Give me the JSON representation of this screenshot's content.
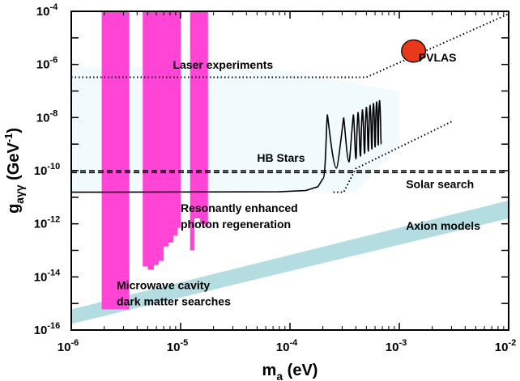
{
  "chart_data": {
    "type": "area",
    "x_scale": "log",
    "y_scale": "log",
    "xlim": [
      1e-06,
      0.01
    ],
    "ylim": [
      1e-16,
      0.0001
    ],
    "xlabel": {
      "base": "m",
      "sub": "a",
      "rest": " (eV)"
    },
    "ylabel": {
      "base": "g",
      "sub": "aγγ",
      "rest": " (GeV",
      "sup": "-1",
      "end": ")"
    },
    "x_ticks": [
      {
        "value": 1e-06,
        "base": "10",
        "exp": "-6"
      },
      {
        "value": 1e-05,
        "base": "10",
        "exp": "-5"
      },
      {
        "value": 0.0001,
        "base": "10",
        "exp": "-4"
      },
      {
        "value": 0.001,
        "base": "10",
        "exp": "-3"
      },
      {
        "value": 0.01,
        "base": "10",
        "exp": "-2"
      }
    ],
    "y_ticks": [
      {
        "value": 1e-16,
        "base": "10",
        "exp": "-16"
      },
      {
        "value": 1e-14,
        "base": "10",
        "exp": "-14"
      },
      {
        "value": 1e-12,
        "base": "10",
        "exp": "-12"
      },
      {
        "value": 1e-10,
        "base": "10",
        "exp": "-10"
      },
      {
        "value": 1e-08,
        "base": "10",
        "exp": "-8"
      },
      {
        "value": 1e-06,
        "base": "10",
        "exp": "-6"
      },
      {
        "value": 0.0001,
        "base": "10",
        "exp": "-4"
      }
    ],
    "colors": {
      "microwave": "#ff44d6",
      "axion_band": "#b4dde2",
      "solar_region": "#f1fafd",
      "pvlas_fill": "#e8391c",
      "line": "#000000"
    },
    "regions": {
      "axion_models_band": {
        "lower": [
          [
            1e-06,
            1.7e-16
          ],
          [
            0.01,
            1.6e-12
          ]
        ],
        "upper": [
          [
            1e-06,
            6e-16
          ],
          [
            0.01,
            7.5e-12
          ]
        ]
      },
      "solar_search": [
        [
          1e-06,
          1.5e-11
        ],
        [
          1e-06,
          8e-07
        ],
        [
          5.5e-05,
          8e-07
        ],
        [
          0.001,
          1e-07
        ],
        [
          0.001,
          1e-09
        ],
        [
          0.0004,
          1.5e-11
        ]
      ],
      "microwave_cavity": [
        {
          "x": [
            1.9e-06,
            3.4e-06
          ],
          "steps": [
            [
              1.9e-06,
              6e-16
            ],
            [
              3.4e-06,
              6e-16
            ]
          ]
        },
        {
          "x": [
            4.5e-06,
            1e-05
          ],
          "steps": [
            [
              4.5e-06,
              2.5e-14
            ],
            [
              5e-06,
              1.9e-14
            ],
            [
              5.7e-06,
              2.8e-14
            ],
            [
              6.3e-06,
              4e-14
            ],
            [
              7e-06,
              1.4e-13
            ],
            [
              7.8e-06,
              2e-13
            ],
            [
              8.6e-06,
              3.6e-13
            ],
            [
              9.4e-06,
              7e-13
            ],
            [
              1e-05,
              7e-13
            ]
          ]
        },
        {
          "x": [
            1.22e-05,
            1.78e-05
          ],
          "steps": [
            [
              1.22e-05,
              1e-13
            ],
            [
              1.34e-05,
              1.6e-12
            ],
            [
              1.5e-05,
              1e-12
            ],
            [
              1.65e-05,
              8e-13
            ],
            [
              1.78e-05,
              8e-13
            ]
          ]
        }
      ],
      "microwave_top": 0.0001
    },
    "lines": {
      "laser_experiments": {
        "style": "dotted",
        "points": [
          [
            1e-06,
            3.3e-07
          ],
          [
            0.0005,
            3.3e-07
          ],
          [
            0.01,
            8e-05
          ]
        ]
      },
      "hb_stars": {
        "style": "dashed",
        "y": 1e-10
      },
      "hb_stars_second": {
        "style": "dashed",
        "y": 8.5e-11
      },
      "resonant_extension": {
        "style": "dotted",
        "points": [
          [
            0.00025,
            1.55e-11
          ],
          [
            0.00031,
            1.55e-11
          ],
          [
            0.0004,
            1.2e-10
          ],
          [
            0.003,
            7e-09
          ]
        ]
      },
      "resonant_baseline": {
        "style": "solid",
        "points": [
          [
            1e-06,
            1.55e-11
          ],
          [
            8e-05,
            1.6e-11
          ],
          [
            0.00014,
            1.8e-11
          ],
          [
            0.00018,
            2.5e-11
          ],
          [
            0.0002,
            5e-11
          ]
        ]
      },
      "resonant_peaks": [
        {
          "x": 0.00022,
          "peak": 1.3e-08
        },
        {
          "x": 0.00031,
          "peak": 1e-08
        },
        {
          "x": 0.00038,
          "peak": 1.3e-08
        },
        {
          "x": 0.00042,
          "peak": 1.6e-08
        },
        {
          "x": 0.00046,
          "peak": 2e-08
        },
        {
          "x": 0.0005,
          "peak": 2.5e-08
        },
        {
          "x": 0.00054,
          "peak": 3e-08
        },
        {
          "x": 0.00058,
          "peak": 3.5e-08
        },
        {
          "x": 0.00062,
          "peak": 4e-08
        },
        {
          "x": 0.00066,
          "peak": 4.5e-08
        }
      ],
      "resonant_floor_end": {
        "x": 0.00068,
        "y": 1e-09
      }
    },
    "pvlas": {
      "x": 0.00135,
      "y": 3.2e-06,
      "rx_decades": 0.11,
      "ry_decades": 0.42
    },
    "annotations": [
      {
        "text": "Laser experiments",
        "x": 8.5e-06,
        "y": 7e-07
      },
      {
        "text": "PVLAS",
        "x": 0.0015,
        "y": 1.3e-06
      },
      {
        "text": "HB Stars",
        "x": 5e-05,
        "y": 2.2e-10
      },
      {
        "text": "Solar search",
        "x": 0.00115,
        "y": 2.2e-11
      },
      {
        "text": "Resonantly enhanced",
        "x": 1e-05,
        "y": 2.8e-12
      },
      {
        "text": "photon regeneration",
        "x": 1e-05,
        "y": 7e-13
      },
      {
        "text": "Axion models",
        "x": 0.00115,
        "y": 6e-13
      },
      {
        "text": "Microwave cavity",
        "x": 2.6e-06,
        "y": 3.5e-15
      },
      {
        "text": "dark matter searches",
        "x": 2.6e-06,
        "y": 8.5e-16
      }
    ]
  }
}
